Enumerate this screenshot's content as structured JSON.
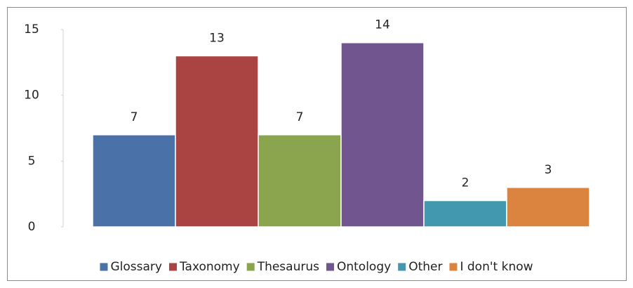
{
  "chart_data": {
    "type": "bar",
    "categories": [
      null
    ],
    "series": [
      {
        "name": "Glossary",
        "color": "#4a72a8",
        "values": [
          7
        ]
      },
      {
        "name": "Taxonomy",
        "color": "#a94442",
        "values": [
          13
        ]
      },
      {
        "name": "Thesaurus",
        "color": "#8ba54e",
        "values": [
          7
        ]
      },
      {
        "name": "Ontology",
        "color": "#71558f",
        "values": [
          14
        ]
      },
      {
        "name": "Other",
        "color": "#4198af",
        "values": [
          2
        ]
      },
      {
        "name": "I don't know",
        "color": "#db8440",
        "values": [
          3
        ]
      }
    ],
    "ylim": [
      0,
      15
    ],
    "yticks": [
      0,
      5,
      10,
      15
    ],
    "grid": false,
    "legend": "bottom"
  }
}
